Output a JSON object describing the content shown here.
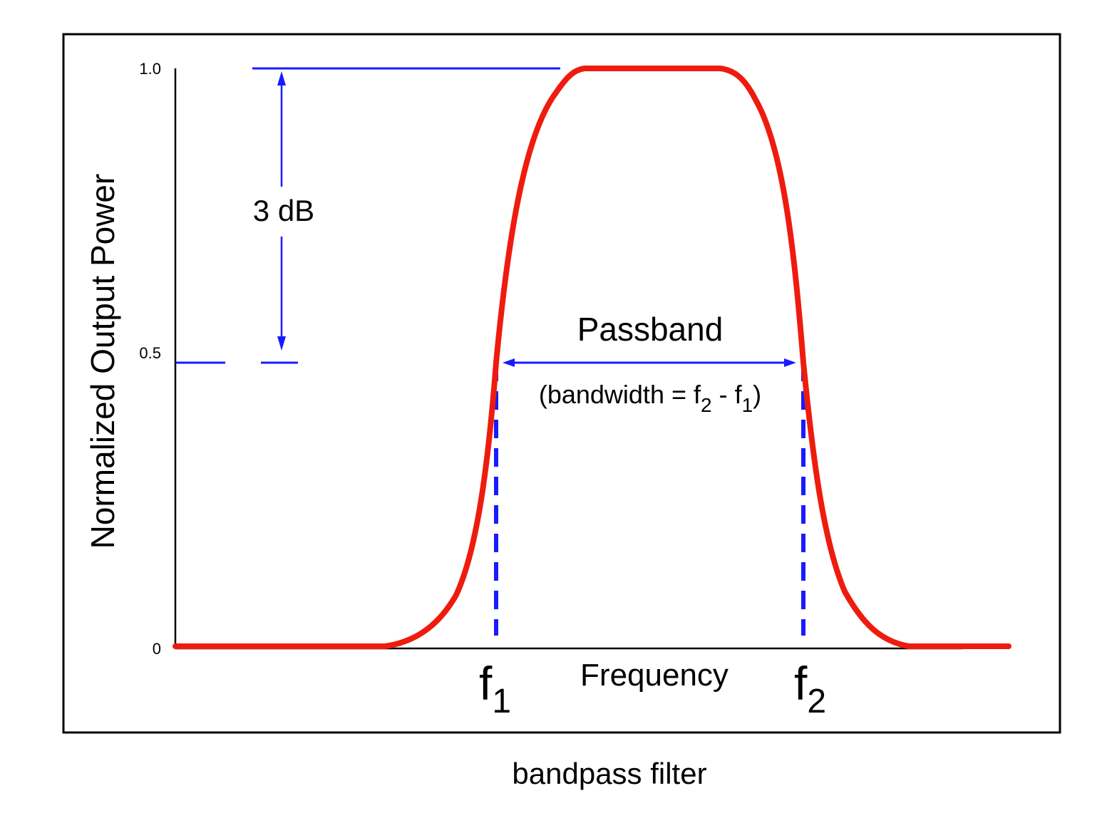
{
  "figure": {
    "caption": "bandpass filter",
    "y_axis_label": "Normalized Output Power",
    "x_axis_label": "Frequency",
    "y_ticks": [
      "1.0",
      "0.5",
      "0"
    ],
    "annotation_3db": "3 dB",
    "passband_label": "Passband",
    "bandwidth_label": {
      "prefix": "(bandwidth = f",
      "sub_a": "2",
      "middle": " - f",
      "sub_b": "1",
      "suffix": ")"
    },
    "f1": {
      "base": "f",
      "sub": "1"
    },
    "f2": {
      "base": "f",
      "sub": "2"
    }
  },
  "colors": {
    "curve": "#ee1c0e",
    "annotation": "#1a1aff",
    "frame": "#000000"
  }
}
